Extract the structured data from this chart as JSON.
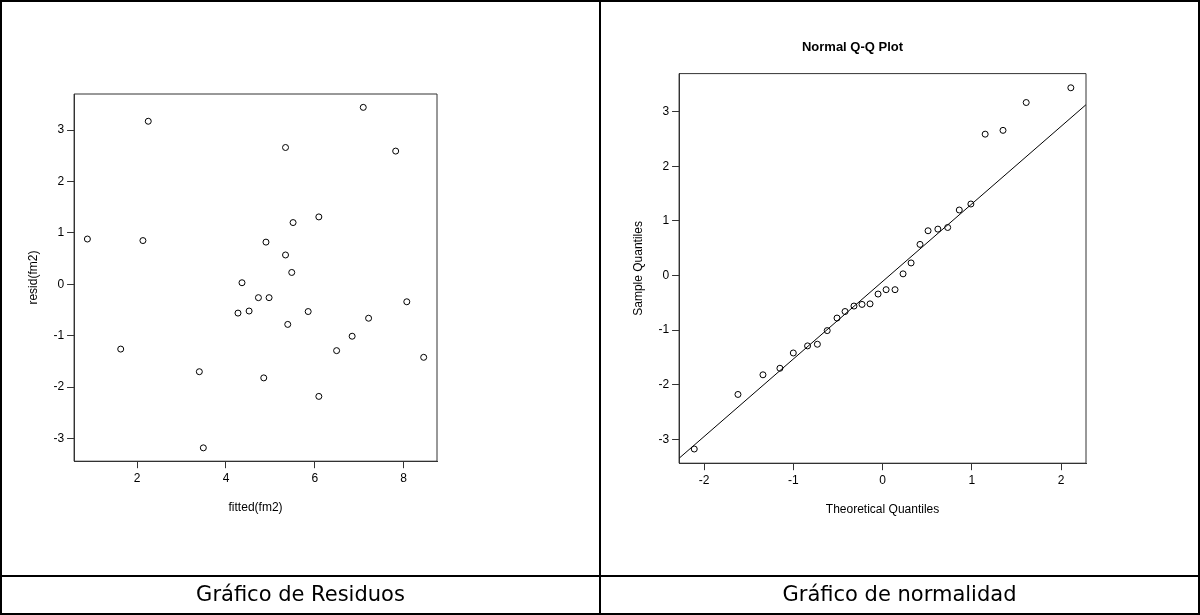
{
  "chart_data": [
    {
      "type": "scatter",
      "xlabel": "fitted(fm2)",
      "ylabel": "resid(fm2)",
      "annotations": [
        "Gráfico de Residuos"
      ],
      "xlim": [
        0.58,
        8.75
      ],
      "ylim": [
        -3.44,
        3.7
      ],
      "xticks": [
        2,
        4,
        6,
        8
      ],
      "yticks": [
        -3,
        -2,
        -1,
        0,
        1,
        2,
        3
      ],
      "grid": false,
      "marker": "circle",
      "series": [
        {
          "color": "#000000",
          "x": [
            0.88,
            1.63,
            2.13,
            2.25,
            3.4,
            3.49,
            4.27,
            4.36,
            4.52,
            4.73,
            4.85,
            4.9,
            4.97,
            5.34,
            5.34,
            5.39,
            5.48,
            5.51,
            5.85,
            6.09,
            6.09,
            6.49,
            6.84,
            7.09,
            7.21,
            7.82,
            8.07,
            8.45
          ],
          "values": [
            0.88,
            -1.26,
            0.85,
            3.17,
            -1.7,
            -3.18,
            -0.56,
            0.03,
            -0.52,
            -0.26,
            -1.82,
            0.82,
            -0.26,
            2.66,
            0.57,
            -0.78,
            0.23,
            1.2,
            -0.53,
            1.31,
            -2.18,
            -1.29,
            -1.01,
            3.44,
            -0.66,
            2.59,
            -0.34,
            -1.42
          ]
        }
      ]
    },
    {
      "type": "scatter",
      "title": "Normal Q-Q Plot",
      "xlabel": "Theoretical Quantiles",
      "ylabel": "Sample Quantiles",
      "annotations": [
        "Gráfico de normalidad"
      ],
      "xlim": [
        -2.28,
        2.28
      ],
      "ylim": [
        -3.44,
        3.7
      ],
      "xticks": [
        -2,
        -1,
        0,
        1,
        2
      ],
      "yticks": [
        -3,
        -2,
        -1,
        0,
        1,
        2,
        3
      ],
      "grid": false,
      "marker": "circle",
      "series": [
        {
          "color": "#000000",
          "x": [
            -2.11,
            -1.62,
            -1.34,
            -1.15,
            -1.0,
            -0.84,
            -0.73,
            -0.62,
            -0.51,
            -0.42,
            -0.32,
            -0.23,
            -0.14,
            -0.05,
            0.04,
            0.14,
            0.23,
            0.32,
            0.42,
            0.51,
            0.62,
            0.73,
            0.86,
            0.99,
            1.15,
            1.35,
            1.61,
            2.11
          ],
          "values": [
            -3.18,
            -2.18,
            -1.82,
            -1.7,
            -1.42,
            -1.29,
            -1.26,
            -1.01,
            -0.78,
            -0.66,
            -0.56,
            -0.53,
            -0.52,
            -0.34,
            -0.26,
            -0.26,
            0.03,
            0.23,
            0.57,
            0.82,
            0.85,
            0.88,
            1.2,
            1.31,
            2.59,
            2.66,
            3.17,
            3.44
          ]
        },
        {
          "type": "line",
          "color": "#000000",
          "marker": "none",
          "line_style": "solid",
          "x": [
            -2.28,
            2.28
          ],
          "values": [
            -3.35,
            3.13
          ]
        }
      ]
    }
  ]
}
